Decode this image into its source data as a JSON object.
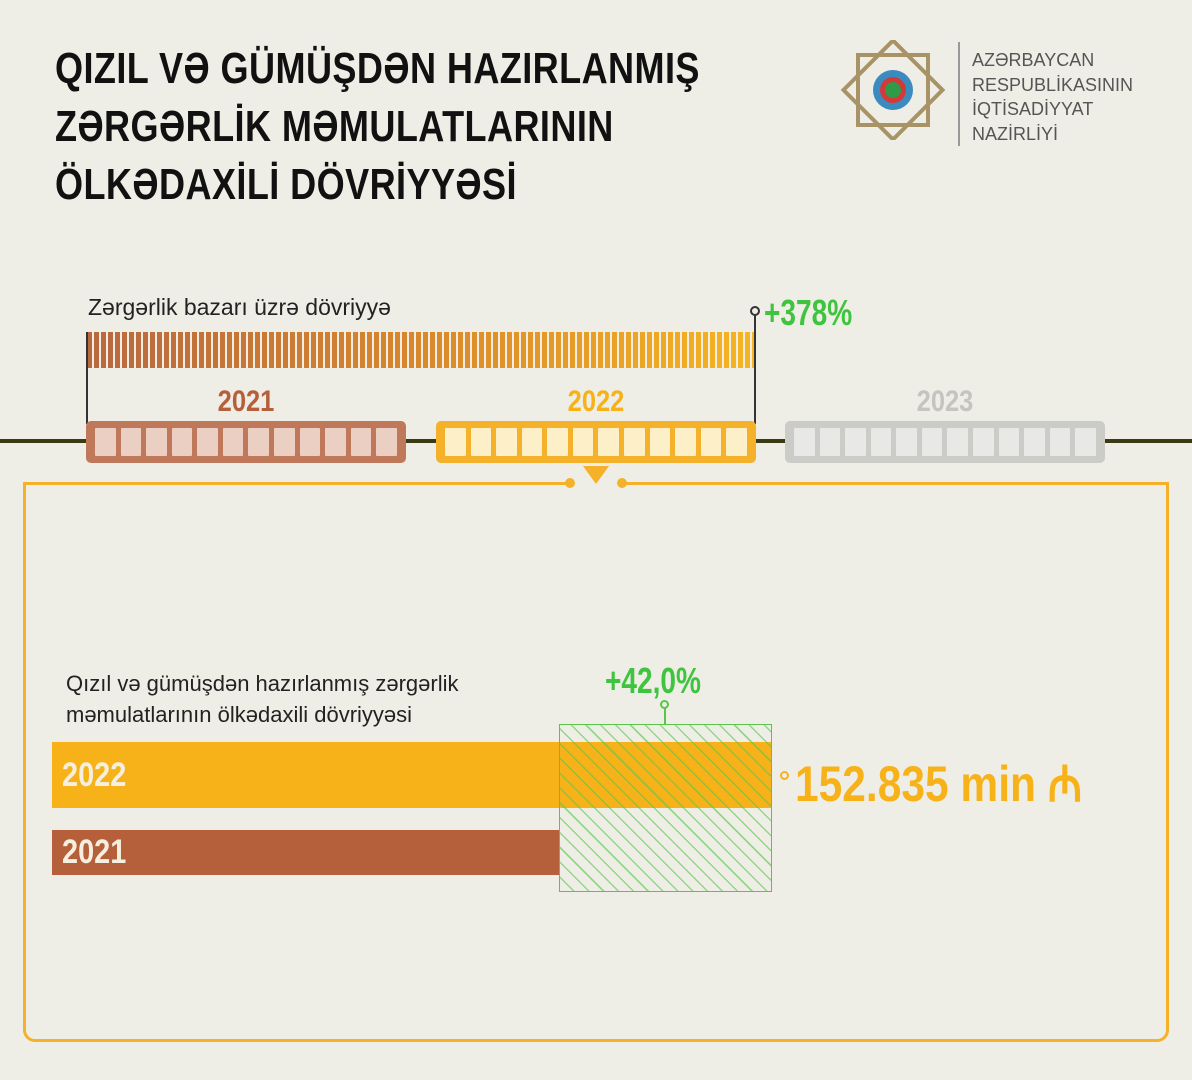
{
  "title": [
    "QIZIL VƏ GÜMÜŞDƏN HAZIRLANMIŞ",
    "ZƏRGƏRLİK MƏMULATLARININ",
    "ÖLKƏDAXİLİ DÖVRİYYƏSİ"
  ],
  "org": [
    "AZƏRBAYCAN",
    "RESPUBLİKASININ",
    "İQTİSADİYYAT",
    "NAZİRLİYİ"
  ],
  "market": {
    "label": "Zərgərlik bazarı üzrə dövriyyə",
    "growth": "+378%"
  },
  "timeline": {
    "years": [
      "2021",
      "2022",
      "2023"
    ]
  },
  "colors": {
    "y2021": "#b5603a",
    "y2022": "#f7b21a",
    "y2023": "#c9c9c6",
    "green": "#3ec43e"
  },
  "chart_data": {
    "type": "bar",
    "orientation": "horizontal",
    "title": "Qızıl və gümüşdən hazırlanmış zərgərlik məmulatlarının ölkədaxili dövriyyəsi",
    "categories": [
      "2022",
      "2021"
    ],
    "values": [
      152835,
      107630
    ],
    "unit": "min ₼",
    "value_label": "152.835 min ₼",
    "growth_label": "+42,0%",
    "growth": 0.42
  }
}
